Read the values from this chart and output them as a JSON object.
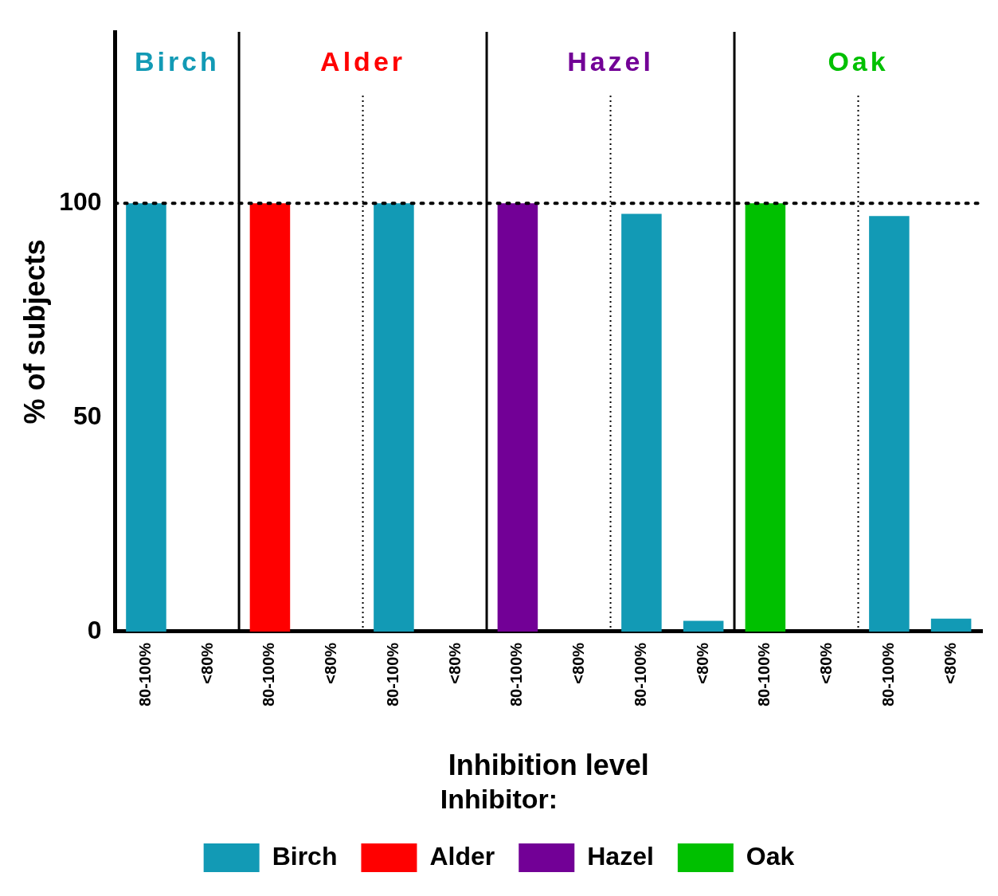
{
  "chart_data": {
    "type": "bar",
    "xlabel": "Inhibition level",
    "ylabel": "% of subjects",
    "legend_title": "Inhibitor:",
    "categories": [
      "80-100%",
      "<80%",
      "80-100%",
      "<80%",
      "80-100%",
      "<80%",
      "80-100%",
      "<80%",
      "80-100%",
      "<80%",
      "80-100%",
      "<80%",
      "80-100%",
      "<80%"
    ],
    "series": [
      {
        "name": "Birch",
        "color": "#129ab5",
        "values": [
          100,
          0,
          null,
          null,
          100,
          0,
          null,
          null,
          97.5,
          2.5,
          null,
          null,
          97,
          3
        ]
      },
      {
        "name": "Alder",
        "color": "#ff0000",
        "values": [
          null,
          null,
          100,
          0,
          null,
          null,
          null,
          null,
          null,
          null,
          null,
          null,
          null,
          null
        ]
      },
      {
        "name": "Hazel",
        "color": "#720096",
        "values": [
          null,
          null,
          null,
          null,
          null,
          null,
          100,
          0,
          null,
          null,
          null,
          null,
          null,
          null
        ]
      },
      {
        "name": "Oak",
        "color": "#00c000",
        "values": [
          null,
          null,
          null,
          null,
          null,
          null,
          null,
          null,
          null,
          null,
          100,
          0,
          null,
          null
        ]
      }
    ],
    "ylim": [
      0,
      140
    ],
    "yticks": [
      0,
      50,
      100
    ],
    "grid": false,
    "legend": "bottom",
    "ref_lines": [
      {
        "axis": "y",
        "value": 100,
        "line_style": "dotted"
      }
    ]
  }
}
